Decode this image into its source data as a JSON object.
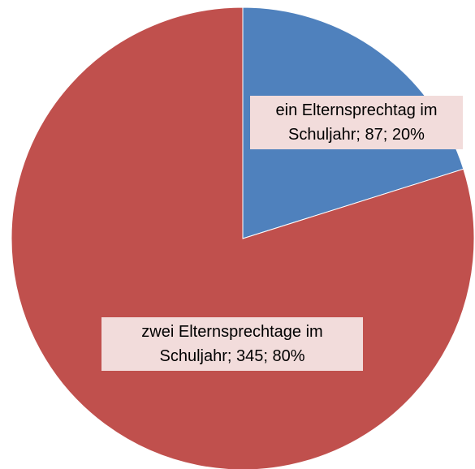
{
  "chart_data": {
    "type": "pie",
    "categories": [
      "ein Elternsprechtag im Schuljahr",
      "zwei Elternsprechtage im Schuljahr"
    ],
    "values": [
      87,
      345
    ],
    "value_labels": [
      "ein Elternsprechtag im Schuljahr; 87; 20%",
      "zwei Elternsprechtage im Schuljahr; 345; 80%"
    ],
    "colors": [
      "#4f81bd",
      "#c0504d"
    ]
  }
}
